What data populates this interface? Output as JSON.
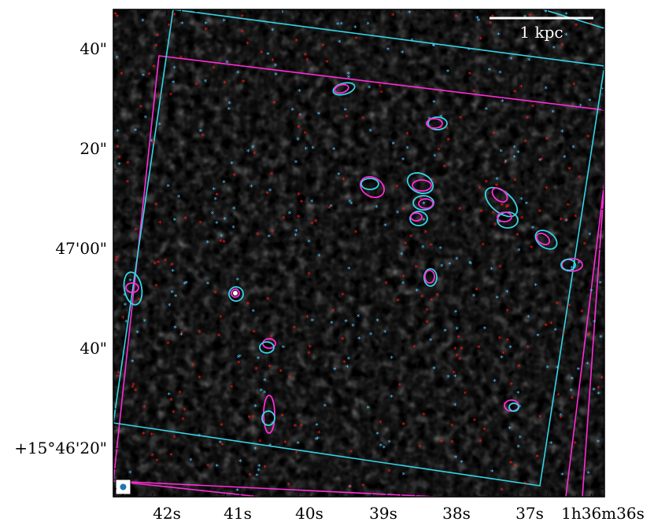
{
  "image": {
    "description_free": true,
    "colors": {
      "background": "#000000",
      "frame": "#000000",
      "footprint_a": "#ff2bd6",
      "footprint_b": "#35d4e6",
      "star_red": "#ff1a1a",
      "star_blue": "#4fc3f7",
      "scalebar": "#ffffff",
      "beam": "#1f77b4"
    }
  },
  "axes": {
    "x_ticks": [
      {
        "label": "42s",
        "ra_seconds": 42
      },
      {
        "label": "41s",
        "ra_seconds": 41
      },
      {
        "label": "40s",
        "ra_seconds": 40
      },
      {
        "label": "39s",
        "ra_seconds": 39
      },
      {
        "label": "38s",
        "ra_seconds": 38
      },
      {
        "label": "37s",
        "ra_seconds": 37
      },
      {
        "label": "1h36m36s",
        "ra_seconds": 36
      }
    ],
    "y_ticks": [
      {
        "label": "40\"",
        "dec_arcsec": 100
      },
      {
        "label": "20\"",
        "dec_arcsec": 80
      },
      {
        "label": "47'00\"",
        "dec_arcsec": 60
      },
      {
        "label": "40\"",
        "dec_arcsec": 40
      },
      {
        "label": "+15°46'20\"",
        "dec_arcsec": 20
      }
    ]
  },
  "scalebar": {
    "label": "1 kpc"
  }
}
